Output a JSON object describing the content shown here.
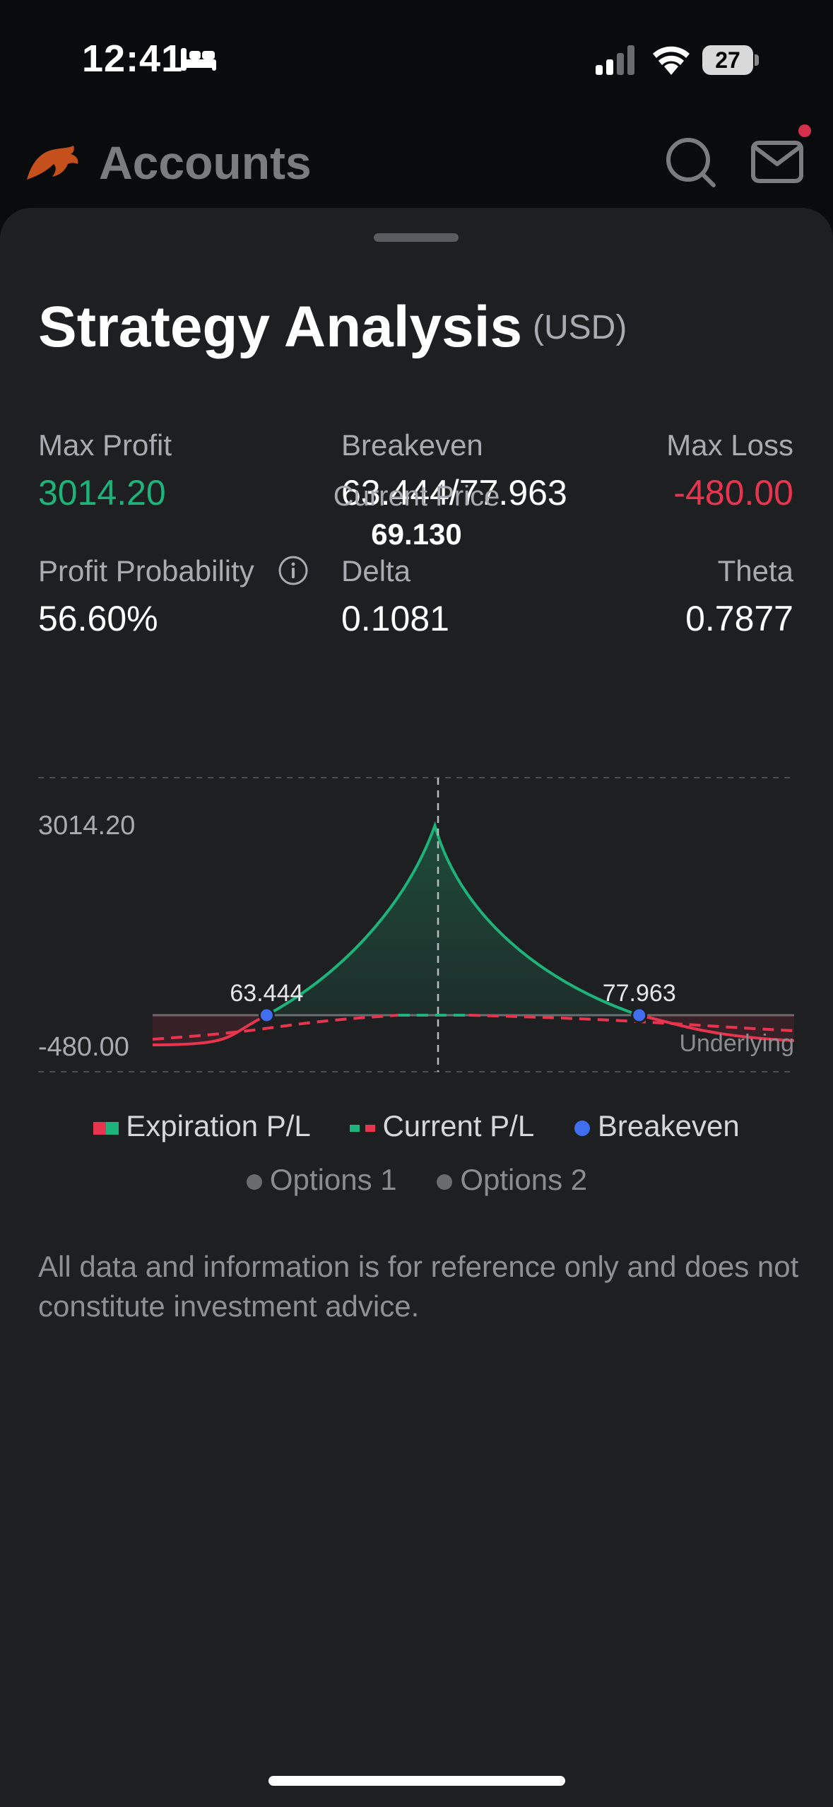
{
  "status_bar": {
    "time": "12:41",
    "battery": "27",
    "icons": [
      "bed-icon",
      "signal-icon",
      "wifi-icon",
      "battery-icon"
    ]
  },
  "header": {
    "title": "Accounts",
    "icons": [
      "bull-logo-icon",
      "search-icon",
      "mail-icon"
    ]
  },
  "sheet": {
    "title": "Strategy Analysis",
    "currency": "(USD)",
    "metrics": {
      "max_profit": {
        "label": "Max Profit",
        "value": "3014.20"
      },
      "breakeven": {
        "label": "Breakeven",
        "value": "63.444/77.963"
      },
      "max_loss": {
        "label": "Max Loss",
        "value": "-480.00"
      },
      "profit_probability": {
        "label": "Profit Probability",
        "value": "56.60%"
      },
      "delta": {
        "label": "Delta",
        "value": "0.1081"
      },
      "theta": {
        "label": "Theta",
        "value": "0.7877"
      }
    },
    "current_price": {
      "label": "Current Price",
      "value": "69.130"
    },
    "legend": {
      "expiration": "Expiration P/L",
      "current": "Current P/L",
      "breakeven": "Breakeven",
      "options1": "Options 1",
      "options2": "Options 2"
    },
    "disclaimer": "All data and information is for reference only and does not constitute investment advice."
  },
  "chart_data": {
    "type": "line",
    "y_max_label": "3014.20",
    "y_min_label": "-480.00",
    "x_label": "Underlying",
    "ylim": [
      -480.0,
      3014.2
    ],
    "current_price": 69.13,
    "breakevens": [
      63.444,
      77.963
    ],
    "breakeven_labels": [
      "63.444",
      "77.963"
    ],
    "series": [
      {
        "name": "Expiration P/L",
        "x": [
          59.0,
          63.444,
          70.0,
          77.963,
          84.0
        ],
        "y": [
          -480,
          0,
          3014.2,
          0,
          -480
        ]
      },
      {
        "name": "Current P/L",
        "x": [
          59.0,
          63.444,
          70.0,
          77.963,
          84.0
        ],
        "y": [
          -170,
          -80,
          0,
          -80,
          -170
        ]
      }
    ],
    "colors": {
      "profit": "#1db37a",
      "loss": "#e8354f",
      "breakeven": "#3f6ef0",
      "grid": "#4a4c50"
    }
  }
}
